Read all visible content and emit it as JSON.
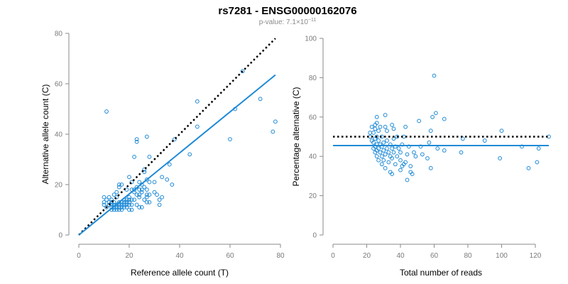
{
  "header": {
    "title": "rs7281 - ENSG00000162076",
    "pvalue_prefix": "p-value: 7.1×10",
    "pvalue_exponent": "−11"
  },
  "colors": {
    "points": "#1f8ad6",
    "fit": "#1f8ad6",
    "reference": "#000000",
    "axes": "#8a8a8a"
  },
  "chart_data": [
    {
      "type": "scatter",
      "xlabel": "Reference allele count (T)",
      "ylabel": "Alternative allele count (C)",
      "xlim": [
        0,
        80
      ],
      "ylim": [
        0,
        80
      ],
      "xticks": [
        0,
        20,
        40,
        60,
        80
      ],
      "yticks": [
        0,
        20,
        40,
        60,
        80
      ],
      "grid": false,
      "reference_line": {
        "style": "dotted",
        "x": [
          0,
          78
        ],
        "y": [
          0,
          78
        ]
      },
      "fit_line": {
        "style": "solid",
        "x": [
          0,
          78
        ],
        "y": [
          0,
          63.5
        ]
      },
      "points": [
        [
          11,
          49
        ],
        [
          10,
          15
        ],
        [
          10,
          13
        ],
        [
          10,
          12
        ],
        [
          11,
          14
        ],
        [
          11,
          11
        ],
        [
          12,
          12
        ],
        [
          12,
          13
        ],
        [
          12,
          15
        ],
        [
          13,
          10
        ],
        [
          13,
          11
        ],
        [
          13,
          12
        ],
        [
          13,
          13
        ],
        [
          13,
          14
        ],
        [
          14,
          10
        ],
        [
          14,
          11
        ],
        [
          14,
          12
        ],
        [
          14,
          13
        ],
        [
          14,
          16
        ],
        [
          15,
          10
        ],
        [
          15,
          11
        ],
        [
          15,
          12
        ],
        [
          15,
          15
        ],
        [
          15,
          17
        ],
        [
          16,
          10
        ],
        [
          16,
          11
        ],
        [
          16,
          12
        ],
        [
          16,
          13
        ],
        [
          16,
          19
        ],
        [
          16,
          20
        ],
        [
          17,
          10
        ],
        [
          17,
          11
        ],
        [
          17,
          12
        ],
        [
          17,
          13
        ],
        [
          17,
          20
        ],
        [
          18,
          11
        ],
        [
          18,
          12
        ],
        [
          18,
          13
        ],
        [
          18,
          14
        ],
        [
          19,
          11
        ],
        [
          19,
          12
        ],
        [
          19,
          13
        ],
        [
          19,
          14
        ],
        [
          19,
          18
        ],
        [
          20,
          10
        ],
        [
          20,
          12
        ],
        [
          20,
          13
        ],
        [
          20,
          14
        ],
        [
          20,
          15
        ],
        [
          20,
          23
        ],
        [
          21,
          10
        ],
        [
          21,
          12
        ],
        [
          21,
          14
        ],
        [
          21,
          18
        ],
        [
          21,
          21
        ],
        [
          22,
          14
        ],
        [
          22,
          17
        ],
        [
          22,
          18
        ],
        [
          22,
          31
        ],
        [
          23,
          12
        ],
        [
          23,
          16
        ],
        [
          23,
          19
        ],
        [
          23,
          37
        ],
        [
          23,
          38
        ],
        [
          24,
          11
        ],
        [
          24,
          15
        ],
        [
          24,
          16
        ],
        [
          24,
          18
        ],
        [
          24,
          21
        ],
        [
          25,
          11
        ],
        [
          25,
          17
        ],
        [
          25,
          18
        ],
        [
          25,
          20
        ],
        [
          26,
          14
        ],
        [
          26,
          19
        ],
        [
          26,
          25
        ],
        [
          26,
          26
        ],
        [
          27,
          13
        ],
        [
          27,
          15
        ],
        [
          27,
          16
        ],
        [
          27,
          18
        ],
        [
          27,
          22
        ],
        [
          27,
          39
        ],
        [
          28,
          13
        ],
        [
          28,
          16
        ],
        [
          28,
          21
        ],
        [
          28,
          31
        ],
        [
          30,
          17
        ],
        [
          30,
          21
        ],
        [
          31,
          16
        ],
        [
          32,
          12
        ],
        [
          32,
          14
        ],
        [
          33,
          15
        ],
        [
          33,
          23
        ],
        [
          35,
          22
        ],
        [
          36,
          28
        ],
        [
          37,
          20
        ],
        [
          38,
          38
        ],
        [
          44,
          32
        ],
        [
          47,
          53
        ],
        [
          47,
          43
        ],
        [
          60,
          38
        ],
        [
          62,
          50
        ],
        [
          65,
          65
        ],
        [
          72,
          54
        ],
        [
          77,
          41
        ],
        [
          78,
          45
        ]
      ]
    },
    {
      "type": "scatter",
      "xlabel": "Total number of reads",
      "ylabel": "Percentage alternative (C)",
      "xlim": [
        0,
        128
      ],
      "ylim": [
        0,
        100
      ],
      "xticks": [
        0,
        20,
        40,
        60,
        80,
        100,
        120
      ],
      "yticks": [
        0,
        20,
        40,
        60,
        80,
        100
      ],
      "grid": false,
      "reference_line": {
        "style": "dotted",
        "y": 50
      },
      "fit_line": {
        "style": "solid",
        "y": 45.5
      },
      "points": [
        [
          22,
          50
        ],
        [
          22,
          52
        ],
        [
          23,
          48
        ],
        [
          23,
          55
        ],
        [
          24,
          44
        ],
        [
          24,
          47
        ],
        [
          24,
          52
        ],
        [
          25,
          42
        ],
        [
          25,
          45
        ],
        [
          25,
          49
        ],
        [
          25,
          54
        ],
        [
          25,
          56
        ],
        [
          26,
          40
        ],
        [
          26,
          43
        ],
        [
          26,
          46
        ],
        [
          26,
          50
        ],
        [
          26,
          57
        ],
        [
          26,
          60
        ],
        [
          27,
          38
        ],
        [
          27,
          44
        ],
        [
          27,
          48
        ],
        [
          27,
          53
        ],
        [
          28,
          42
        ],
        [
          28,
          46
        ],
        [
          28,
          55
        ],
        [
          29,
          36
        ],
        [
          29,
          40
        ],
        [
          29,
          45
        ],
        [
          29,
          50
        ],
        [
          30,
          38
        ],
        [
          30,
          43
        ],
        [
          30,
          47
        ],
        [
          31,
          34
        ],
        [
          31,
          41
        ],
        [
          31,
          55
        ],
        [
          31,
          61
        ],
        [
          32,
          44
        ],
        [
          32,
          48
        ],
        [
          32,
          53
        ],
        [
          33,
          37
        ],
        [
          33,
          42
        ],
        [
          34,
          32
        ],
        [
          34,
          40
        ],
        [
          34,
          46
        ],
        [
          35,
          31
        ],
        [
          35,
          39
        ],
        [
          35,
          44
        ],
        [
          35,
          56
        ],
        [
          36,
          42
        ],
        [
          36,
          49
        ],
        [
          36,
          54
        ],
        [
          37,
          36
        ],
        [
          37,
          45
        ],
        [
          38,
          40
        ],
        [
          38,
          50
        ],
        [
          39,
          44
        ],
        [
          40,
          33
        ],
        [
          40,
          38
        ],
        [
          40,
          42
        ],
        [
          41,
          35
        ],
        [
          41,
          46
        ],
        [
          42,
          36
        ],
        [
          42,
          50
        ],
        [
          43,
          37
        ],
        [
          43,
          55
        ],
        [
          44,
          28
        ],
        [
          44,
          41
        ],
        [
          45,
          45
        ],
        [
          46,
          32
        ],
        [
          46,
          35
        ],
        [
          47,
          31
        ],
        [
          48,
          42
        ],
        [
          49,
          40
        ],
        [
          51,
          58
        ],
        [
          52,
          45
        ],
        [
          53,
          41
        ],
        [
          56,
          39
        ],
        [
          57,
          47
        ],
        [
          58,
          53
        ],
        [
          58,
          34
        ],
        [
          59,
          60
        ],
        [
          60,
          81
        ],
        [
          61,
          62
        ],
        [
          62,
          44
        ],
        [
          66,
          59
        ],
        [
          66,
          43
        ],
        [
          76,
          42
        ],
        [
          77,
          49
        ],
        [
          90,
          48
        ],
        [
          99,
          39
        ],
        [
          100,
          53
        ],
        [
          112,
          45
        ],
        [
          116,
          34
        ],
        [
          121,
          37
        ],
        [
          122,
          44
        ],
        [
          128,
          50
        ]
      ]
    }
  ]
}
